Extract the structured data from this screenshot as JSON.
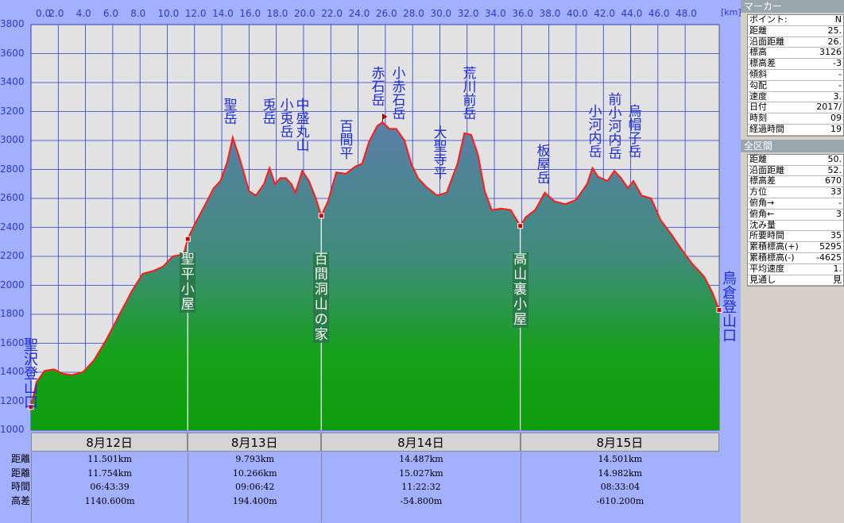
{
  "chart_data": {
    "type": "area",
    "x_unit": "[km]",
    "xlim": [
      0,
      50.5
    ],
    "ylim": [
      1000,
      3800
    ],
    "x_ticks": [
      "0.0",
      "2.0",
      "4.0",
      "6.0",
      "8.0",
      "10.0",
      "12.0",
      "14.0",
      "16.0",
      "18.0",
      "20.0",
      "22.0",
      "24.0",
      "26.0",
      "28.0",
      "30.0",
      "32.0",
      "34.0",
      "36.0",
      "38.0",
      "40.0",
      "42.0",
      "44.0",
      "46.0",
      "48.0"
    ],
    "y_ticks": [
      "1000",
      "1200",
      "1400",
      "1600",
      "1800",
      "2000",
      "2200",
      "2400",
      "2600",
      "2800",
      "3000",
      "3200",
      "3400",
      "3600",
      "3800"
    ],
    "grid": true,
    "profile": [
      [
        0,
        1160
      ],
      [
        0.4,
        1330
      ],
      [
        1,
        1410
      ],
      [
        1.7,
        1420
      ],
      [
        2.3,
        1390
      ],
      [
        3,
        1380
      ],
      [
        3.8,
        1400
      ],
      [
        4.6,
        1480
      ],
      [
        5.5,
        1620
      ],
      [
        6.5,
        1800
      ],
      [
        7.4,
        1960
      ],
      [
        8.2,
        2080
      ],
      [
        9,
        2100
      ],
      [
        9.7,
        2130
      ],
      [
        10.4,
        2200
      ],
      [
        11.2,
        2215
      ],
      [
        11.5,
        2320
      ],
      [
        12,
        2420
      ],
      [
        12.8,
        2560
      ],
      [
        13.4,
        2670
      ],
      [
        13.9,
        2720
      ],
      [
        14.4,
        2850
      ],
      [
        14.8,
        3020
      ],
      [
        15.3,
        2880
      ],
      [
        16,
        2650
      ],
      [
        16.5,
        2620
      ],
      [
        17.1,
        2700
      ],
      [
        17.5,
        2810
      ],
      [
        17.9,
        2700
      ],
      [
        18.3,
        2740
      ],
      [
        18.7,
        2740
      ],
      [
        19.1,
        2700
      ],
      [
        19.4,
        2640
      ],
      [
        19.9,
        2790
      ],
      [
        20.4,
        2720
      ],
      [
        20.9,
        2600
      ],
      [
        21.3,
        2480
      ],
      [
        21.8,
        2580
      ],
      [
        22.4,
        2780
      ],
      [
        23.1,
        2770
      ],
      [
        23.8,
        2820
      ],
      [
        24.3,
        2840
      ],
      [
        24.8,
        2990
      ],
      [
        25.4,
        3100
      ],
      [
        25.8,
        3126
      ],
      [
        26.3,
        3080
      ],
      [
        26.8,
        3080
      ],
      [
        27.4,
        3000
      ],
      [
        27.9,
        2840
      ],
      [
        28.4,
        2740
      ],
      [
        29,
        2680
      ],
      [
        29.8,
        2620
      ],
      [
        30.5,
        2640
      ],
      [
        31.3,
        2840
      ],
      [
        31.8,
        3050
      ],
      [
        32.3,
        3040
      ],
      [
        32.8,
        2900
      ],
      [
        33.3,
        2650
      ],
      [
        33.8,
        2520
      ],
      [
        34.5,
        2530
      ],
      [
        35.2,
        2520
      ],
      [
        35.9,
        2410
      ],
      [
        36.3,
        2470
      ],
      [
        37,
        2520
      ],
      [
        37.7,
        2640
      ],
      [
        38.4,
        2580
      ],
      [
        39.2,
        2560
      ],
      [
        40,
        2590
      ],
      [
        40.8,
        2700
      ],
      [
        41.2,
        2810
      ],
      [
        41.6,
        2750
      ],
      [
        42.3,
        2720
      ],
      [
        42.8,
        2790
      ],
      [
        43.3,
        2740
      ],
      [
        43.8,
        2670
      ],
      [
        44.2,
        2720
      ],
      [
        44.8,
        2620
      ],
      [
        45.5,
        2600
      ],
      [
        46.2,
        2450
      ],
      [
        47,
        2350
      ],
      [
        47.8,
        2240
      ],
      [
        48.5,
        2150
      ],
      [
        49.4,
        2060
      ],
      [
        50,
        1950
      ],
      [
        50.5,
        1830
      ]
    ],
    "peaks": [
      {
        "name": "聖岳",
        "x": 14.8
      },
      {
        "name": "兎岳",
        "x": 17.5
      },
      {
        "name": "小兎岳",
        "x": 18.7
      },
      {
        "name": "中盛丸山",
        "x": 19.9
      },
      {
        "name": "百間平",
        "x": 23.1
      },
      {
        "name": "赤石岳",
        "x": 25.8
      },
      {
        "name": "小赤石岳",
        "x": 27.0
      },
      {
        "name": "大聖寺平",
        "x": 29.8
      },
      {
        "name": "荒川前岳",
        "x": 32.0
      },
      {
        "name": "板屋岳",
        "x": 37.7
      },
      {
        "name": "小河内岳",
        "x": 41.2
      },
      {
        "name": "前小河内岳",
        "x": 42.8
      },
      {
        "name": "烏帽子岳",
        "x": 44.2
      }
    ],
    "huts": [
      {
        "name": "聖平小屋",
        "x": 11.5
      },
      {
        "name": "百間洞山の家",
        "x": 21.3
      },
      {
        "name": "高山裏小屋",
        "x": 35.9
      }
    ],
    "start_label": "聖沢登山口",
    "end_label": "鳥倉登山口"
  },
  "sidebar": {
    "marker_title": "マーカー",
    "marker_rows": [
      {
        "label": "ポイント:",
        "value": "N"
      },
      {
        "label": "距離",
        "value": "25."
      },
      {
        "label": "沿面距離",
        "value": "26."
      },
      {
        "label": "標高",
        "value": "3126"
      },
      {
        "label": "標高差",
        "value": "-3"
      },
      {
        "label": "傾斜",
        "value": "-"
      },
      {
        "label": "勾配",
        "value": "-"
      },
      {
        "label": "速度",
        "value": "3."
      },
      {
        "label": "日付",
        "value": "2017/"
      },
      {
        "label": "時刻",
        "value": "09"
      },
      {
        "label": "経過時間",
        "value": "19"
      }
    ],
    "total_title": "全区間",
    "total_rows": [
      {
        "label": "距離",
        "value": "50."
      },
      {
        "label": "沿面距離",
        "value": "52."
      },
      {
        "label": "標高差",
        "value": "670"
      },
      {
        "label": "方位",
        "value": "33"
      },
      {
        "label": "俯角→",
        "value": "-"
      },
      {
        "label": "俯角←",
        "value": "3"
      },
      {
        "label": "沈み量",
        "value": ""
      },
      {
        "label": "所要時間",
        "value": "35"
      },
      {
        "label": "累積標高(+)",
        "value": "5295"
      },
      {
        "label": "累積標高(-)",
        "value": "-4625"
      },
      {
        "label": "平均速度",
        "value": "1."
      },
      {
        "label": "見通し",
        "value": "見"
      }
    ]
  },
  "table": {
    "row_labels": [
      "距離",
      "距離",
      "時間",
      "高差"
    ],
    "days": [
      {
        "date": "8月12日",
        "x0": 0,
        "x1": 11.5,
        "vals": [
          "11.501km",
          "11.754km",
          "06:43:39",
          "1140.600m"
        ]
      },
      {
        "date": "8月13日",
        "x0": 11.5,
        "x1": 21.3,
        "vals": [
          "9.793km",
          "10.266km",
          "09:06:42",
          "194.400m"
        ]
      },
      {
        "date": "8月14日",
        "x0": 21.3,
        "x1": 35.9,
        "vals": [
          "14.487km",
          "15.027km",
          "11:22:32",
          "-54.800m"
        ]
      },
      {
        "date": "8月15日",
        "x0": 35.9,
        "x1": 50.5,
        "vals": [
          "14.501km",
          "14.982km",
          "08:33:04",
          "-610.200m"
        ]
      }
    ]
  }
}
